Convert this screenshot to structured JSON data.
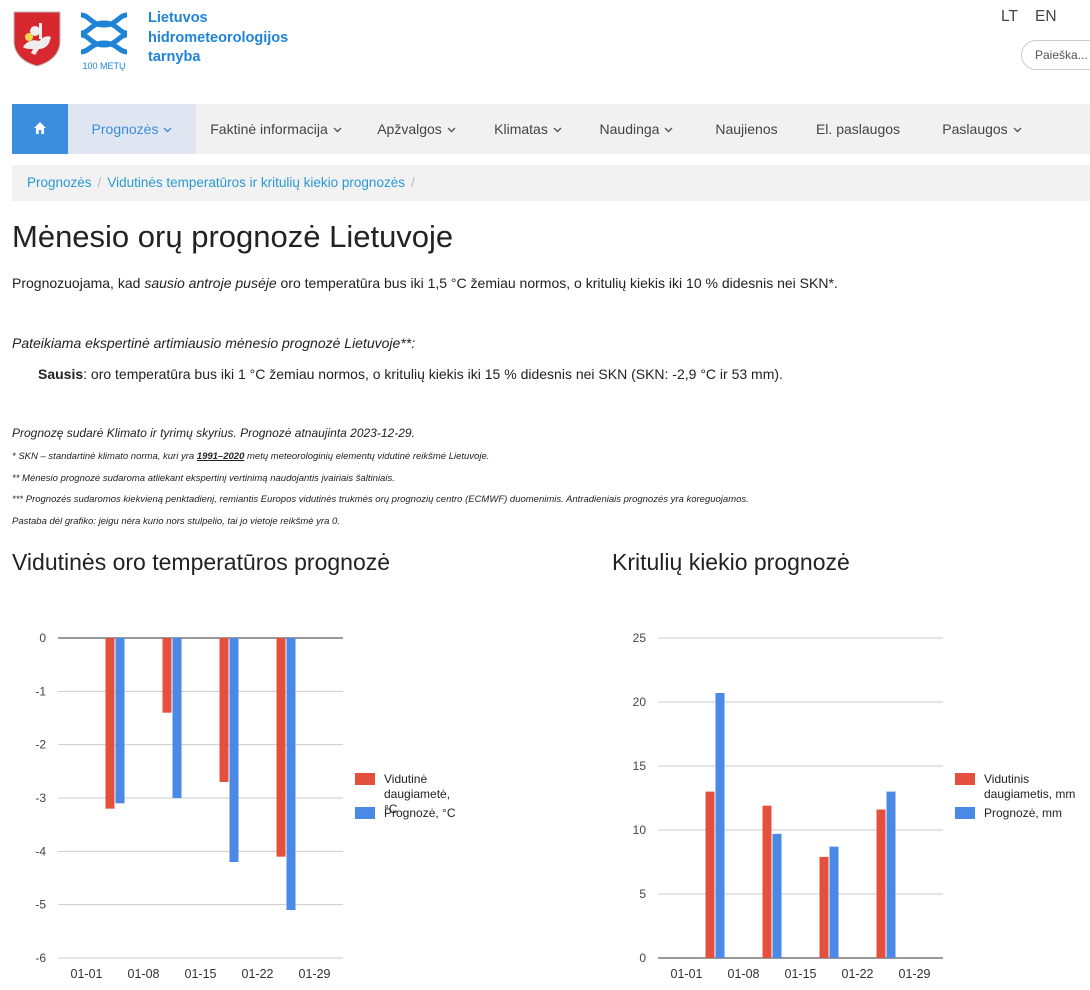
{
  "header": {
    "org_name": "Lietuvos\nhidrometeorologijos\ntarnyba",
    "logo_caption": "100 METŲ",
    "lang_lt": "LT",
    "lang_en": "EN",
    "search_placeholder": "Paieška..."
  },
  "nav": {
    "home_icon": "home-icon",
    "items": [
      {
        "label": "Prognozės",
        "dropdown": true,
        "active": true
      },
      {
        "label": "Faktinė informacija",
        "dropdown": true
      },
      {
        "label": "Apžvalgos",
        "dropdown": true
      },
      {
        "label": "Klimatas",
        "dropdown": true
      },
      {
        "label": "Naudinga",
        "dropdown": true
      },
      {
        "label": "Naujienos",
        "dropdown": false
      },
      {
        "label": "El. paslaugos",
        "dropdown": false
      },
      {
        "label": "Paslaugos",
        "dropdown": true
      }
    ]
  },
  "breadcrumb": [
    "Prognozės",
    "Vidutinės temperatūros ir kritulių kiekio prognozės"
  ],
  "page": {
    "title": "Mėnesio orų prognozė Lietuvoje",
    "summary_pre": "Prognozuojama, kad ",
    "summary_em": "sausio antroje pusėje",
    "summary_post": " oro temperatūra bus iki 1,5 °C žemiau normos, o kritulių kiekis iki 10 % didesnis nei SKN*.",
    "intro": "Pateikiama ekspertinė artimiausio mėnesio prognozė Lietuvoje**:",
    "month_label": "Sausis",
    "month_text": ": oro temperatūra bus iki 1 °C žemiau normos, o kritulių kiekis iki 15 % didesnis nei SKN (SKN: -2,9 °C ir 53 mm).",
    "prepared": "Prognozę sudarė Klimato ir tyrimų skyrius. Prognozė atnaujinta 2023-12-29.",
    "note1_pre": "* SKN – standartinė klimato norma, kuri yra ",
    "note1_years": "1991–2020",
    "note1_post": " metų meteorologinių elementų vidutinė reikšmė Lietuvoje.",
    "note2": "** Mėnesio prognozė sudaroma atliekant ekspertinį vertinimą naudojantis įvairiais šaltiniais.",
    "note3": "*** Prognozės sudaromos kiekvieną penktadienį, remiantis Europos vidutinės trukmės orų prognozių centro (ECMWF) duomenimis. Antradieniais prognozės yra koreguojamos.",
    "note4": "Pastaba dėl grafiko: jeigu nėra kurio nors stulpelio, tai jo vietoje reikšmė yra 0."
  },
  "colors": {
    "series_normal": "#e5503e",
    "series_forecast": "#4a89e5",
    "accent": "#3b8ddd",
    "link": "#2b98d6"
  },
  "chart_data": [
    {
      "type": "bar",
      "title": "Vidutinės oro temperatūros prognozė",
      "x_ticks": [
        "01-01",
        "01-08",
        "01-15",
        "01-22",
        "01-29"
      ],
      "ylim": [
        -6,
        0
      ],
      "y_ticks": [
        0,
        -1,
        -2,
        -3,
        -4,
        -5,
        -6
      ],
      "grid": true,
      "legend_position": "right",
      "series": [
        {
          "name": "Vidutinė daugiametė, °C",
          "color": "#e5503e",
          "values": [
            -3.2,
            -1.4,
            -2.7,
            -4.1
          ]
        },
        {
          "name": "Prognozė, °C",
          "color": "#4a89e5",
          "values": [
            -3.1,
            -3.0,
            -4.2,
            -5.1
          ]
        }
      ]
    },
    {
      "type": "bar",
      "title": "Kritulių kiekio prognozė",
      "x_ticks": [
        "01-01",
        "01-08",
        "01-15",
        "01-22",
        "01-29"
      ],
      "ylim": [
        0,
        25
      ],
      "y_ticks": [
        25,
        20,
        15,
        10,
        5,
        0
      ],
      "grid": true,
      "legend_position": "right",
      "series": [
        {
          "name": "Vidutinis daugiametis, mm",
          "color": "#e5503e",
          "values": [
            13.0,
            11.9,
            7.9,
            11.6
          ]
        },
        {
          "name": "Prognozė, mm",
          "color": "#4a89e5",
          "values": [
            20.7,
            9.7,
            8.7,
            13.0
          ]
        }
      ]
    }
  ]
}
